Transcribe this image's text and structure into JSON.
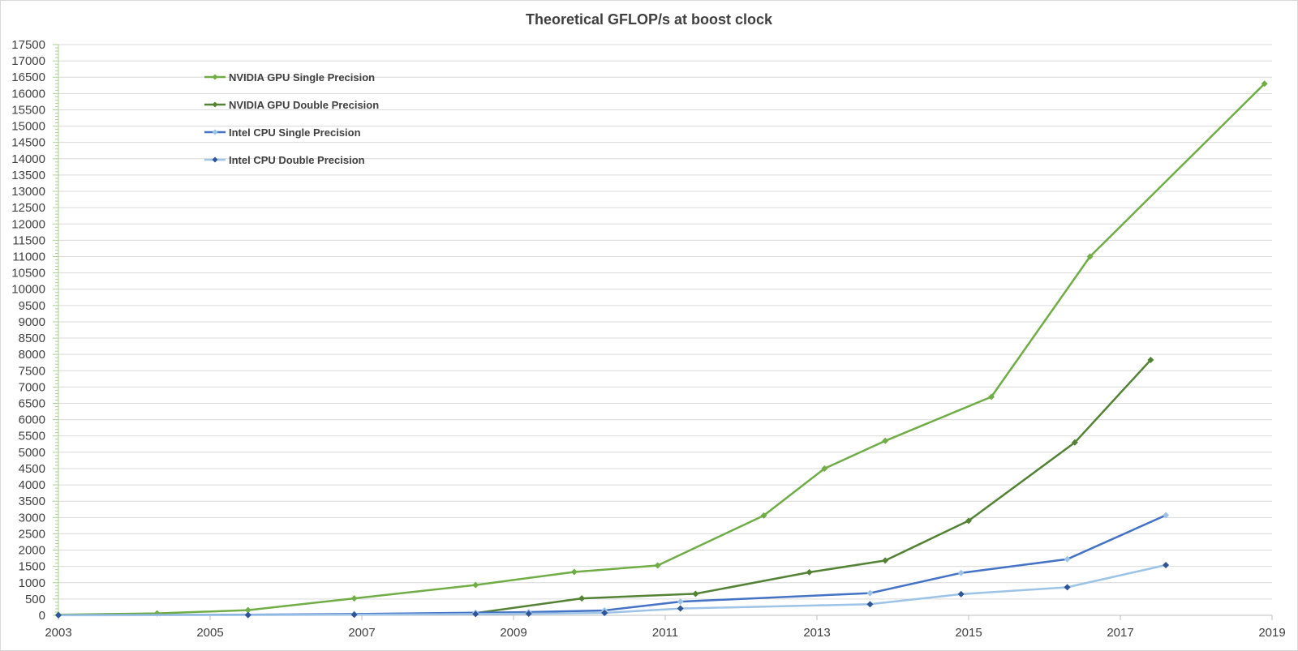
{
  "chart_data": {
    "type": "line",
    "title": "Theoretical GFLOP/s at boost clock",
    "xlabel": "",
    "ylabel": "",
    "xlim": [
      2003,
      2019
    ],
    "ylim": [
      0,
      17500
    ],
    "x_ticks": [
      2003,
      2005,
      2007,
      2009,
      2011,
      2013,
      2015,
      2017,
      2019
    ],
    "y_ticks": [
      0,
      500,
      1000,
      1500,
      2000,
      2500,
      3000,
      3500,
      4000,
      4500,
      5000,
      5500,
      6000,
      6500,
      7000,
      7500,
      8000,
      8500,
      9000,
      9500,
      10000,
      10500,
      11000,
      11500,
      12000,
      12500,
      13000,
      13500,
      14000,
      14500,
      15000,
      15500,
      16000,
      16500,
      17000,
      17500
    ],
    "grid": true,
    "legend_position": "top-left",
    "series": [
      {
        "name": "NVIDIA GPU Single Precision",
        "color": "#70ad47",
        "marker_color": "#70ad47",
        "points": [
          [
            2003.0,
            20
          ],
          [
            2004.3,
            60
          ],
          [
            2005.5,
            160
          ],
          [
            2006.9,
            520
          ],
          [
            2008.5,
            930
          ],
          [
            2009.8,
            1330
          ],
          [
            2010.9,
            1530
          ],
          [
            2012.3,
            3060
          ],
          [
            2013.1,
            4500
          ],
          [
            2013.9,
            5350
          ],
          [
            2015.3,
            6700
          ],
          [
            2016.6,
            11000
          ],
          [
            2018.9,
            16300
          ]
        ]
      },
      {
        "name": "NVIDIA GPU Double Precision",
        "color": "#548235",
        "marker_color": "#548235",
        "points": [
          [
            2008.5,
            70
          ],
          [
            2009.9,
            520
          ],
          [
            2011.4,
            660
          ],
          [
            2012.9,
            1320
          ],
          [
            2013.9,
            1680
          ],
          [
            2015.0,
            2900
          ],
          [
            2016.4,
            5300
          ],
          [
            2017.4,
            7830
          ]
        ]
      },
      {
        "name": "Intel CPU Single Precision",
        "color": "#4472c4",
        "marker_color": "#9dc3e6",
        "points": [
          [
            2003.0,
            5
          ],
          [
            2005.5,
            20
          ],
          [
            2006.9,
            40
          ],
          [
            2008.5,
            80
          ],
          [
            2009.2,
            100
          ],
          [
            2010.2,
            150
          ],
          [
            2011.2,
            420
          ],
          [
            2013.7,
            680
          ],
          [
            2014.9,
            1300
          ],
          [
            2016.3,
            1720
          ],
          [
            2017.6,
            3070
          ]
        ]
      },
      {
        "name": "Intel CPU Double Precision",
        "color": "#9dc3e6",
        "marker_color": "#2f5597",
        "points": [
          [
            2003.0,
            2
          ],
          [
            2005.5,
            10
          ],
          [
            2006.9,
            20
          ],
          [
            2008.5,
            40
          ],
          [
            2009.2,
            50
          ],
          [
            2010.2,
            75
          ],
          [
            2011.2,
            210
          ],
          [
            2013.7,
            340
          ],
          [
            2014.9,
            650
          ],
          [
            2016.3,
            860
          ],
          [
            2017.6,
            1540
          ]
        ]
      }
    ]
  }
}
